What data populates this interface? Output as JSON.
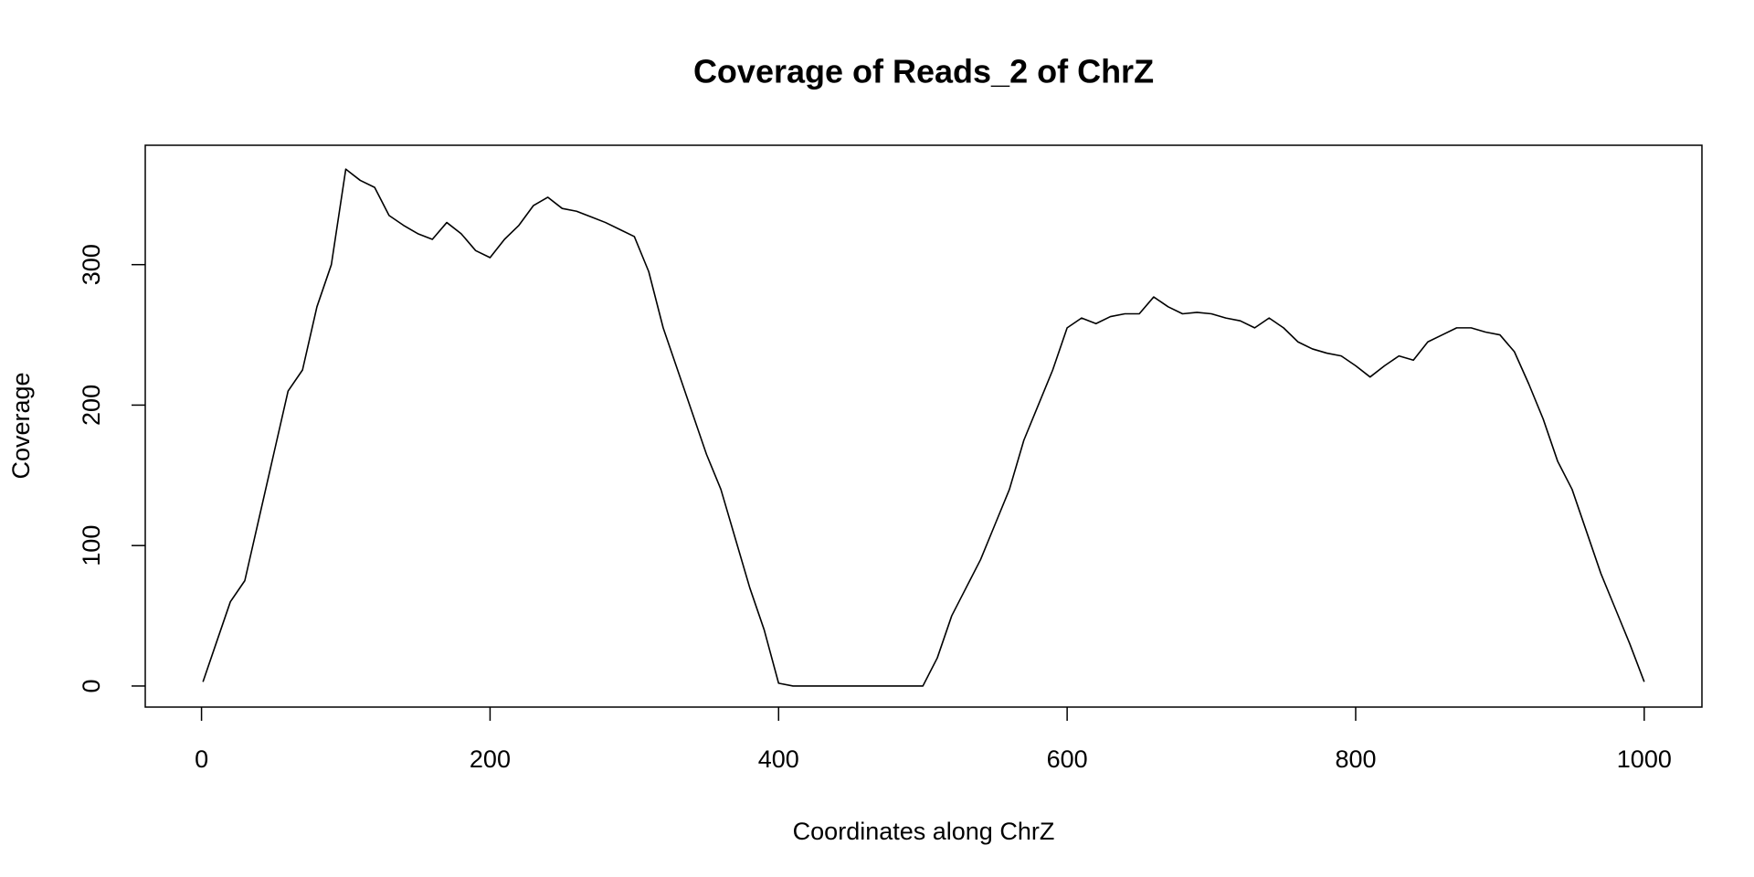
{
  "chart_data": {
    "type": "line",
    "title": "Coverage of Reads_2 of ChrZ",
    "x_label": "Coordinates along ChrZ",
    "y_label": "Coverage",
    "color": "#000000",
    "x": [
      1,
      10,
      20,
      30,
      40,
      50,
      60,
      70,
      80,
      90,
      100,
      110,
      120,
      130,
      140,
      150,
      160,
      170,
      180,
      190,
      200,
      210,
      220,
      230,
      240,
      250,
      260,
      270,
      280,
      290,
      300,
      310,
      320,
      330,
      340,
      350,
      360,
      370,
      380,
      390,
      400,
      410,
      420,
      430,
      440,
      450,
      460,
      470,
      480,
      490,
      500,
      510,
      520,
      530,
      540,
      550,
      560,
      570,
      580,
      590,
      600,
      610,
      620,
      630,
      640,
      650,
      660,
      670,
      680,
      690,
      700,
      710,
      720,
      730,
      740,
      750,
      760,
      770,
      780,
      790,
      800,
      810,
      820,
      830,
      840,
      850,
      860,
      870,
      880,
      890,
      900,
      910,
      920,
      930,
      940,
      950,
      960,
      970,
      980,
      990,
      1000
    ],
    "values": [
      3,
      30,
      60,
      75,
      120,
      165,
      210,
      225,
      270,
      300,
      368,
      360,
      355,
      335,
      328,
      322,
      318,
      330,
      322,
      310,
      305,
      318,
      328,
      342,
      348,
      340,
      338,
      334,
      330,
      325,
      320,
      295,
      255,
      225,
      195,
      165,
      140,
      105,
      70,
      40,
      2,
      0,
      0,
      0,
      0,
      0,
      0,
      0,
      0,
      0,
      0,
      20,
      50,
      70,
      90,
      115,
      140,
      175,
      200,
      225,
      255,
      262,
      258,
      263,
      265,
      265,
      277,
      270,
      265,
      266,
      265,
      262,
      260,
      255,
      262,
      255,
      245,
      240,
      237,
      235,
      228,
      220,
      228,
      235,
      232,
      245,
      250,
      255,
      255,
      252,
      250,
      238,
      215,
      190,
      160,
      140,
      110,
      80,
      55,
      30,
      3
    ],
    "xlim": [
      -39,
      1040
    ],
    "ylim": [
      -15,
      385
    ],
    "xticks": [
      0,
      200,
      400,
      600,
      800,
      1000
    ],
    "yticks": [
      0,
      100,
      200,
      300
    ]
  }
}
